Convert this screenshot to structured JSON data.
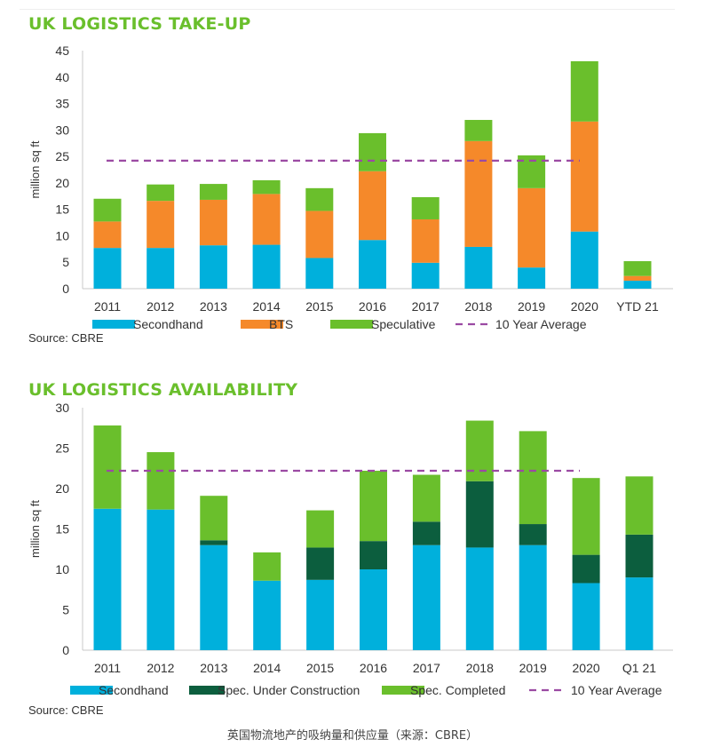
{
  "caption": "英国物流地产的吸纳量和供应量（来源：CBRE）",
  "chart_data": [
    {
      "type": "bar",
      "stacked": true,
      "title": "UK LOGISTICS TAKE-UP",
      "ylabel": "million sq ft",
      "source": "Source: CBRE",
      "ylim": [
        0,
        45
      ],
      "yticks": [
        0,
        5,
        10,
        15,
        20,
        25,
        30,
        35,
        40,
        45
      ],
      "categories": [
        "2011",
        "2012",
        "2013",
        "2014",
        "2015",
        "2016",
        "2017",
        "2018",
        "2019",
        "2020",
        "YTD 21"
      ],
      "series": [
        {
          "name": "Secondhand",
          "color": "#00b0dc",
          "values": [
            7.7,
            7.7,
            8.2,
            8.3,
            5.8,
            9.2,
            4.9,
            7.9,
            4.0,
            10.8,
            1.5
          ]
        },
        {
          "name": "BTS",
          "color": "#f5892a",
          "values": [
            5.0,
            8.9,
            8.6,
            9.6,
            8.9,
            13.0,
            8.2,
            20.0,
            15.0,
            20.8,
            0.9
          ]
        },
        {
          "name": "Speculative",
          "color": "#6abf2c",
          "values": [
            4.3,
            3.1,
            3.0,
            2.6,
            4.3,
            7.2,
            4.2,
            4.0,
            6.2,
            11.4,
            2.8
          ]
        }
      ],
      "reference_line": {
        "name": "10 Year Average",
        "value": 24.2,
        "color": "#9b4aa3",
        "style": "dashed"
      },
      "legend_placement": "bottom",
      "grid": false
    },
    {
      "type": "bar",
      "stacked": true,
      "title": "UK LOGISTICS AVAILABILITY",
      "ylabel": "million sq ft",
      "source": "Source: CBRE",
      "ylim": [
        0,
        30
      ],
      "yticks": [
        0,
        5,
        10,
        15,
        20,
        25,
        30
      ],
      "categories": [
        "2011",
        "2012",
        "2013",
        "2014",
        "2015",
        "2016",
        "2017",
        "2018",
        "2019",
        "2020",
        "Q1 21"
      ],
      "series": [
        {
          "name": "Secondhand",
          "color": "#00b0dc",
          "values": [
            17.5,
            17.4,
            13.0,
            8.6,
            8.7,
            10.0,
            13.0,
            12.7,
            13.0,
            8.3,
            9.0
          ]
        },
        {
          "name": "Spec. Under Construction",
          "color": "#0c5e3e",
          "values": [
            0.0,
            0.0,
            0.6,
            0.0,
            4.0,
            3.5,
            2.9,
            8.2,
            2.6,
            3.5,
            5.3
          ]
        },
        {
          "name": "Spec. Completed",
          "color": "#6abf2c",
          "values": [
            10.3,
            7.1,
            5.5,
            3.5,
            4.6,
            8.7,
            5.8,
            7.5,
            11.5,
            9.5,
            7.2
          ]
        }
      ],
      "reference_line": {
        "name": "10 Year Average",
        "value": 22.2,
        "color": "#9b4aa3",
        "style": "dashed"
      },
      "legend_placement": "bottom",
      "grid": false
    }
  ]
}
